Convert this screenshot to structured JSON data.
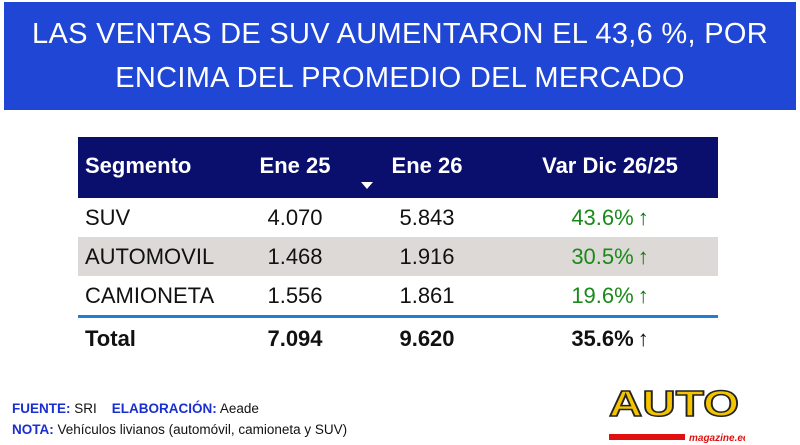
{
  "title_lines": [
    "LAS VENTAS DE SUV AUMENTARON EL 43,6 %, POR",
    "ENCIMA DEL PROMEDIO DEL MERCADO"
  ],
  "table": {
    "headers": [
      "Segmento",
      "Ene 25",
      "Ene 26",
      "Var Dic 26/25"
    ],
    "sort_icon": "sort-descending-triangle",
    "rows": [
      {
        "segmento": "SUV",
        "ene25": "4.070",
        "ene26": "5.843",
        "var": "43.6%",
        "arrow": "↑"
      },
      {
        "segmento": "AUTOMOVIL",
        "ene25": "1.468",
        "ene26": "1.916",
        "var": "30.5%",
        "arrow": "↑"
      },
      {
        "segmento": "CAMIONETA",
        "ene25": "1.556",
        "ene26": "1.861",
        "var": "19.6%",
        "arrow": "↑"
      }
    ],
    "total": {
      "segmento": "Total",
      "ene25": "7.094",
      "ene26": "9.620",
      "var": "35.6%",
      "arrow": "↑"
    }
  },
  "footer": {
    "fuente_label": "FUENTE:",
    "fuente": "SRI",
    "elaboracion_label": "ELABORACIÓN:",
    "elaboracion": "Aeade",
    "nota_label": "NOTA:",
    "nota": "Vehículos livianos (automóvil, camioneta y SUV)"
  },
  "logo": {
    "text": "AUTO",
    "sub": "magazine.ec"
  },
  "colors": {
    "banner": "#1f46d4",
    "header": "#0a0f6e",
    "positive": "#1a8a1a",
    "alt_row": "#dcd9d6"
  }
}
